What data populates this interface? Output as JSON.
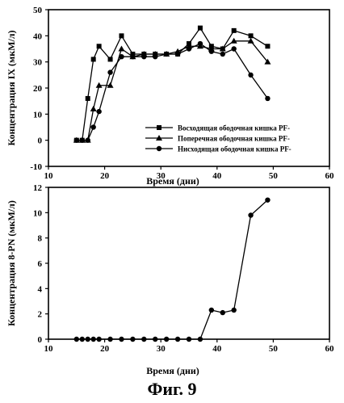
{
  "figure": {
    "caption": "Фиг. 9"
  },
  "chart_data": [
    {
      "type": "line",
      "title": "",
      "xlabel": "Время (дни)",
      "ylabel": "Концентрация IX (мкМ/л)",
      "xlim": [
        10,
        60
      ],
      "ylim": [
        -10,
        50
      ],
      "xticks": [
        10,
        20,
        30,
        40,
        50,
        60
      ],
      "yticks": [
        -10,
        0,
        10,
        20,
        30,
        40,
        50
      ],
      "grid": false,
      "legend": "bottom-right",
      "series": [
        {
          "name": "Восходящая ободочная кишка PF-",
          "marker": "square",
          "x": [
            15,
            16,
            17,
            18,
            19,
            21,
            23,
            25,
            27,
            29,
            31,
            33,
            35,
            37,
            39,
            41,
            43,
            46,
            49
          ],
          "y": [
            0,
            0,
            16,
            31,
            36,
            31,
            40,
            33,
            33,
            33,
            33,
            33,
            37,
            43,
            36,
            35,
            42,
            40,
            36
          ]
        },
        {
          "name": "Поперечная ободочная кишка PF-",
          "marker": "triangle",
          "x": [
            15,
            16,
            17,
            18,
            19,
            21,
            23,
            25,
            27,
            29,
            31,
            33,
            35,
            37,
            39,
            41,
            43,
            46,
            49
          ],
          "y": [
            0,
            0,
            0,
            12,
            21,
            21,
            35,
            32,
            33,
            33,
            33,
            34,
            36,
            36,
            35,
            35,
            38,
            38,
            30
          ]
        },
        {
          "name": "Нисходящая ободочная кишка PF-",
          "marker": "circle",
          "x": [
            15,
            16,
            17,
            18,
            19,
            21,
            23,
            25,
            27,
            29,
            31,
            33,
            35,
            37,
            39,
            41,
            43,
            46,
            49
          ],
          "y": [
            0,
            0,
            0,
            5,
            11,
            26,
            32,
            32,
            32,
            32,
            33,
            33,
            35,
            37,
            34,
            33,
            35,
            25,
            16
          ]
        }
      ]
    },
    {
      "type": "line",
      "title": "",
      "xlabel": "Время (дни)",
      "ylabel": "Концентрация 8-PN (мкМ/л)",
      "xlim": [
        10,
        60
      ],
      "ylim": [
        0,
        12
      ],
      "xticks": [
        10,
        20,
        30,
        40,
        50,
        60
      ],
      "yticks": [
        0,
        2,
        4,
        6,
        8,
        10,
        12
      ],
      "grid": false,
      "series": [
        {
          "name": "",
          "marker": "circle",
          "x": [
            15,
            16,
            17,
            18,
            19,
            21,
            23,
            25,
            27,
            29,
            31,
            33,
            35,
            37,
            39,
            41,
            43,
            46,
            49
          ],
          "y": [
            0,
            0,
            0,
            0,
            0,
            0,
            0,
            0,
            0,
            0,
            0,
            0,
            0,
            0,
            2.3,
            2.1,
            2.3,
            9.8,
            11
          ]
        }
      ]
    }
  ]
}
